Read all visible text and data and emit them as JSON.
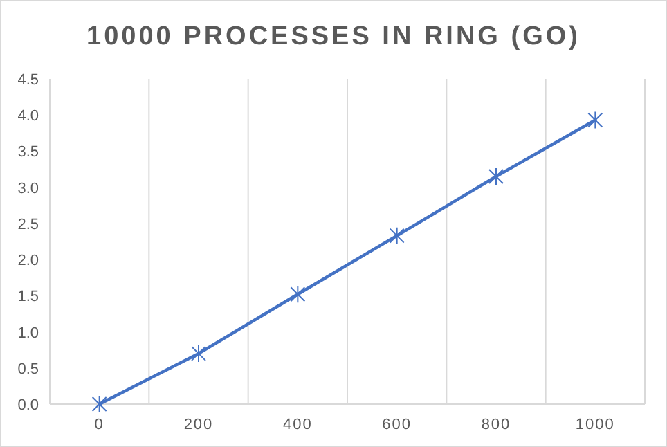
{
  "chart_data": {
    "type": "line",
    "title": "10000 PROCESSES IN RING (GO)",
    "x": [
      0,
      200,
      400,
      600,
      800,
      1000
    ],
    "series": [
      {
        "color": "#4472c4",
        "values": [
          0,
          0.7,
          1.52,
          2.33,
          3.15,
          3.93
        ]
      }
    ],
    "xlim": [
      -100,
      1100
    ],
    "xticks": [
      {
        "value": -100,
        "label": null
      },
      0,
      {
        "value": 100,
        "label": null
      },
      200,
      {
        "value": 300,
        "label": null
      },
      400,
      {
        "value": 500,
        "label": null
      },
      600,
      {
        "value": 700,
        "label": null
      },
      800,
      {
        "value": 900,
        "label": null
      },
      1000,
      {
        "value": 1100,
        "label": null
      }
    ],
    "ylim": [
      0,
      4.5
    ],
    "yticks": [
      {
        "value": 0,
        "label": "0.0"
      },
      {
        "value": 0.5,
        "label": "0.5"
      },
      {
        "value": 1,
        "label": "1.0"
      },
      {
        "value": 1.5,
        "label": "1.5"
      },
      {
        "value": 2,
        "label": "2.0"
      },
      {
        "value": 2.5,
        "label": "2.5"
      },
      {
        "value": 3,
        "label": "3.0"
      },
      {
        "value": 3.5,
        "label": "3.5"
      },
      {
        "value": 4,
        "label": "4.0"
      },
      {
        "value": 4.5,
        "label": "4.5"
      }
    ],
    "grid": "x",
    "marker": "cross",
    "line_style": "solid"
  }
}
